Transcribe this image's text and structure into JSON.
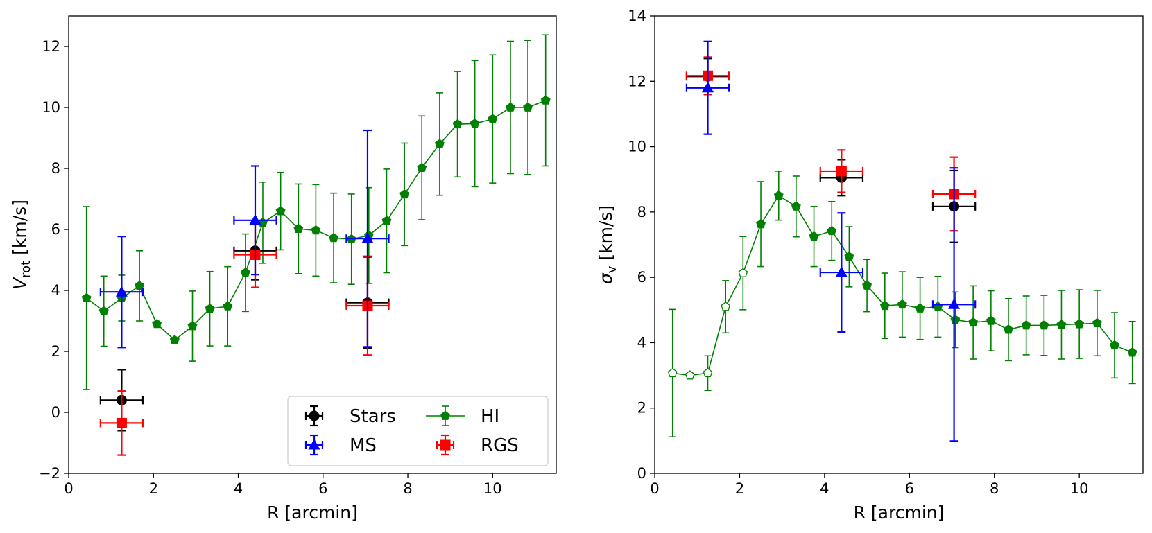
{
  "chart_data": [
    {
      "type": "scatter",
      "panel": "left",
      "xlabel": "R [arcmin]",
      "ylabel_main": "V",
      "ylabel_sub": "rot",
      "ylabel_unit": " [km/s]",
      "xlim": [
        0,
        11.5
      ],
      "ylim": [
        -2,
        13
      ],
      "xticks": [
        0,
        2,
        4,
        6,
        8,
        10
      ],
      "xtick_labels": [
        "0",
        "2",
        "4",
        "6",
        "8",
        "10"
      ],
      "yticks": [
        -2,
        0,
        2,
        4,
        6,
        8,
        10,
        12
      ],
      "ytick_labels": [
        "−2",
        "0",
        "2",
        "4",
        "6",
        "8",
        "10",
        "12"
      ],
      "legend": {
        "position": "lower right",
        "entries": [
          {
            "label": "Stars",
            "color": "#000000",
            "marker": "circle",
            "style": "errorbar"
          },
          {
            "label": "MS",
            "color": "#0000ff",
            "marker": "triangle",
            "style": "errorbar"
          },
          {
            "label": "HI",
            "color": "#008000",
            "marker": "pentagon",
            "style": "line"
          },
          {
            "label": "RGS",
            "color": "#ff0000",
            "marker": "square",
            "style": "errorbar"
          }
        ]
      },
      "series": [
        {
          "name": "HI",
          "color": "#008000",
          "marker": "pentagon",
          "line": true,
          "x": [
            0.42,
            0.83,
            1.25,
            1.67,
            2.08,
            2.5,
            2.92,
            3.33,
            3.75,
            4.17,
            4.58,
            5.0,
            5.42,
            5.83,
            6.25,
            6.67,
            7.08,
            7.5,
            7.92,
            8.33,
            8.75,
            9.17,
            9.58,
            10.0,
            10.42,
            10.83,
            11.25
          ],
          "y": [
            3.75,
            3.32,
            3.75,
            4.15,
            2.9,
            2.37,
            2.83,
            3.4,
            3.48,
            4.58,
            6.22,
            6.6,
            6.02,
            5.97,
            5.72,
            5.68,
            5.8,
            6.28,
            7.15,
            8.02,
            8.8,
            9.45,
            9.47,
            9.62,
            10.0,
            10.0,
            10.23
          ],
          "yerr": [
            3.0,
            1.15,
            0.75,
            1.15,
            0,
            0,
            1.15,
            1.22,
            1.3,
            1.27,
            1.33,
            1.27,
            1.47,
            1.5,
            1.47,
            1.48,
            1.57,
            1.7,
            1.68,
            1.7,
            1.68,
            1.73,
            2.07,
            2.1,
            2.17,
            2.2,
            2.15
          ],
          "xerr": []
        },
        {
          "name": "Stars",
          "color": "#000000",
          "marker": "circle",
          "line": false,
          "x": [
            1.25,
            4.4,
            7.05
          ],
          "y": [
            0.4,
            5.3,
            3.6
          ],
          "yerr": [
            1.0,
            0.95,
            1.5
          ],
          "xerr": [
            0.5,
            0.5,
            0.5
          ]
        },
        {
          "name": "RGS",
          "color": "#ff0000",
          "marker": "square",
          "line": false,
          "x": [
            1.25,
            4.4,
            7.05
          ],
          "y": [
            -0.35,
            5.17,
            3.5
          ],
          "yerr": [
            1.05,
            1.07,
            1.62
          ],
          "xerr": [
            0.5,
            0.5,
            0.5
          ]
        },
        {
          "name": "MS",
          "color": "#0000ff",
          "marker": "triangle",
          "line": false,
          "x": [
            1.25,
            4.4,
            7.05
          ],
          "y": [
            3.95,
            6.3,
            5.7
          ],
          "yerr": [
            1.82,
            1.78,
            3.55
          ],
          "xerr": [
            0.5,
            0.5,
            0.5
          ]
        }
      ]
    },
    {
      "type": "scatter",
      "panel": "right",
      "xlabel": "R [arcmin]",
      "ylabel_main": "σ",
      "ylabel_sub": "v",
      "ylabel_unit": " [km/s]",
      "xlim": [
        0,
        11.5
      ],
      "ylim": [
        0,
        14
      ],
      "xticks": [
        0,
        2,
        4,
        6,
        8,
        10
      ],
      "xtick_labels": [
        "0",
        "2",
        "4",
        "6",
        "8",
        "10"
      ],
      "yticks": [
        0,
        2,
        4,
        6,
        8,
        10,
        12,
        14
      ],
      "ytick_labels": [
        "0",
        "2",
        "4",
        "6",
        "8",
        "10",
        "12",
        "14"
      ],
      "series": [
        {
          "name": "HI",
          "color": "#008000",
          "marker": "pentagon",
          "line": true,
          "hollow_count": 5,
          "x": [
            0.42,
            0.83,
            1.25,
            1.67,
            2.08,
            2.5,
            2.92,
            3.33,
            3.75,
            4.17,
            4.58,
            5.0,
            5.42,
            5.83,
            6.25,
            6.67,
            7.08,
            7.5,
            7.92,
            8.33,
            8.75,
            9.17,
            9.58,
            10.0,
            10.42,
            10.83,
            11.25
          ],
          "y": [
            3.07,
            3.0,
            3.07,
            5.1,
            6.13,
            7.63,
            8.5,
            8.17,
            7.25,
            7.42,
            6.63,
            5.75,
            5.13,
            5.17,
            5.05,
            5.1,
            4.7,
            4.62,
            4.67,
            4.4,
            4.53,
            4.53,
            4.55,
            4.57,
            4.6,
            3.92,
            3.7
          ],
          "yerr": [
            1.95,
            0,
            0.53,
            0.8,
            1.12,
            1.3,
            0.75,
            0.93,
            0.92,
            0.9,
            0.92,
            0.8,
            1.0,
            1.0,
            0.95,
            0.93,
            0.85,
            1.12,
            0.92,
            0.95,
            0.9,
            0.92,
            1.05,
            1.05,
            1.0,
            1.0,
            0.95
          ],
          "xerr": []
        },
        {
          "name": "Stars",
          "color": "#000000",
          "marker": "circle",
          "line": false,
          "x": [
            1.25,
            4.4,
            7.05
          ],
          "y": [
            12.15,
            9.05,
            8.17
          ],
          "yerr": [
            0.55,
            0.55,
            1.1
          ],
          "xerr": [
            0.5,
            0.5,
            0.5
          ]
        },
        {
          "name": "RGS",
          "color": "#ff0000",
          "marker": "square",
          "line": false,
          "x": [
            1.25,
            4.4,
            7.05
          ],
          "y": [
            12.17,
            9.25,
            8.55
          ],
          "yerr": [
            0.57,
            0.65,
            1.13
          ],
          "xerr": [
            0.5,
            0.5,
            0.5
          ]
        },
        {
          "name": "MS",
          "color": "#0000ff",
          "marker": "triangle",
          "line": false,
          "x": [
            1.25,
            4.4,
            7.05
          ],
          "y": [
            11.8,
            6.15,
            5.17
          ],
          "yerr": [
            1.42,
            1.82,
            4.18
          ],
          "xerr": [
            0.5,
            0.5,
            0.5
          ]
        }
      ]
    }
  ]
}
